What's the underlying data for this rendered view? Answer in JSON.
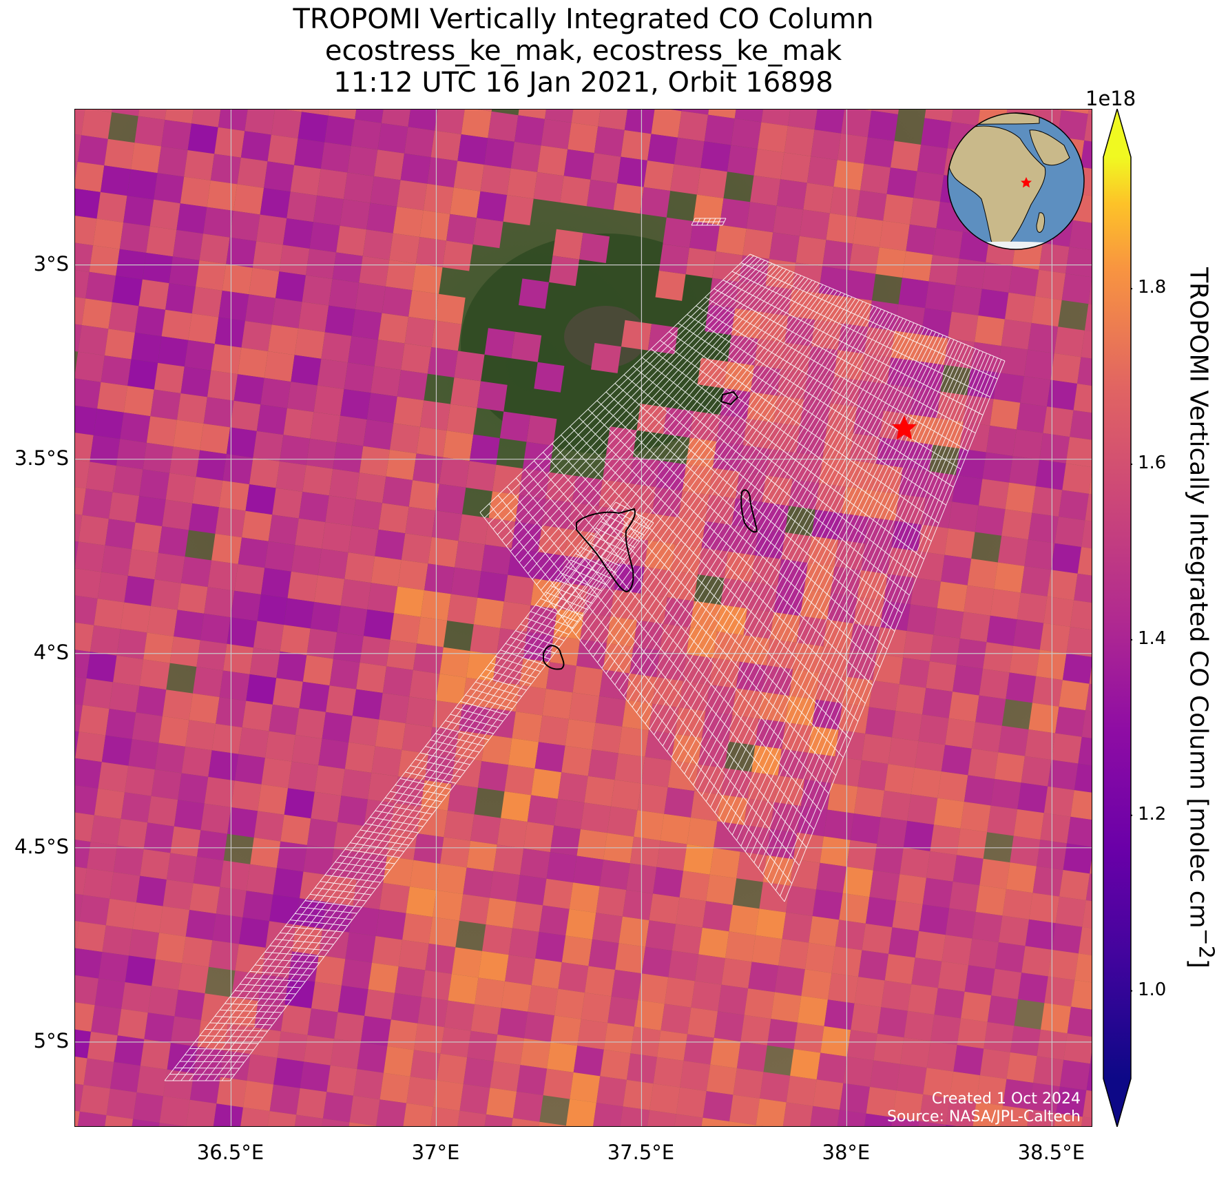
{
  "title": {
    "line1": "TROPOMI Vertically Integrated CO Column",
    "line2": "ecostress_ke_mak, ecostress_ke_mak",
    "line3": "11:12 UTC 16 Jan 2021, Orbit 16898"
  },
  "credits": {
    "created": "Created 1 Oct 2024",
    "source": "Source: NASA/JPL-Caltech"
  },
  "map": {
    "lon_range": [
      36.12,
      38.6
    ],
    "lat_range": [
      -5.22,
      -2.6
    ],
    "x_ticks": [
      {
        "value": 36.5,
        "label": "36.5°E"
      },
      {
        "value": 37.0,
        "label": "37°E"
      },
      {
        "value": 37.5,
        "label": "37.5°E"
      },
      {
        "value": 38.0,
        "label": "38°E"
      },
      {
        "value": 38.5,
        "label": "38.5°E"
      }
    ],
    "y_ticks": [
      {
        "value": -3.0,
        "label": "3°S"
      },
      {
        "value": -3.5,
        "label": "3.5°S"
      },
      {
        "value": -4.0,
        "label": "4°S"
      },
      {
        "value": -4.5,
        "label": "4.5°S"
      },
      {
        "value": -5.0,
        "label": "5°S"
      }
    ],
    "grid": true,
    "gridline_color": "#c8c8c8",
    "target_marker": {
      "lon": 38.14,
      "lat": -3.42,
      "color": "#ff0000",
      "icon": "red-star-icon"
    },
    "inset_globe": {
      "placement": "top-right",
      "ocean_color": "#5d8fc0",
      "land_color": "#c9b98a",
      "marker_color": "#ff0000"
    }
  },
  "colorbar": {
    "label": "TROPOMI Vertically Integrated CO Column [molec cm",
    "label_sup": "−2",
    "label_end": "]",
    "exponent": "1e18",
    "range": [
      0.9,
      1.95
    ],
    "extend": "both",
    "colormap": "plasma",
    "ticks": [
      {
        "value": 1.0,
        "label": "1.0"
      },
      {
        "value": 1.2,
        "label": "1.2"
      },
      {
        "value": 1.4,
        "label": "1.4"
      },
      {
        "value": 1.6,
        "label": "1.6"
      },
      {
        "value": 1.8,
        "label": "1.8"
      }
    ]
  }
}
